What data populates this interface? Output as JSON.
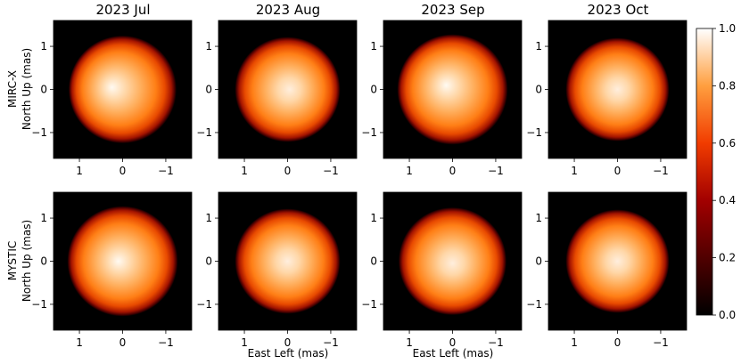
{
  "chart_data": {
    "type": "heatmap",
    "colormap": "gist_heat",
    "colorbar": {
      "range": [
        0.0,
        1.0
      ],
      "ticks": [
        "0.0",
        "0.2",
        "0.4",
        "0.6",
        "0.8",
        "1.0"
      ]
    },
    "columns": [
      "2023 Jul",
      "2023 Aug",
      "2023 Sep",
      "2023 Oct"
    ],
    "rows": [
      {
        "label_line1": "MIRC-X",
        "label_line2": "North Up (mas)"
      },
      {
        "label_line1": "MYSTIC",
        "label_line2": "North Up (mas)"
      }
    ],
    "xlabel": "East Left (mas)",
    "x_ticks": [
      "1",
      "0",
      "−1"
    ],
    "y_ticks": [
      "1",
      "0",
      "−1"
    ],
    "xlim": [
      1.6,
      -1.6
    ],
    "ylim": [
      -1.6,
      1.6
    ],
    "stellar_disk": {
      "panels": [
        {
          "row": 0,
          "col": 0,
          "radius_mas": 1.25,
          "peak": 1.0,
          "bright_center_mas": [
            0.25,
            0.05
          ]
        },
        {
          "row": 0,
          "col": 1,
          "radius_mas": 1.22,
          "peak": 0.97,
          "bright_center_mas": [
            -0.05,
            0.0
          ]
        },
        {
          "row": 0,
          "col": 2,
          "radius_mas": 1.28,
          "peak": 1.0,
          "bright_center_mas": [
            0.15,
            0.1
          ]
        },
        {
          "row": 0,
          "col": 3,
          "radius_mas": 1.2,
          "peak": 0.97,
          "bright_center_mas": [
            0.0,
            0.0
          ]
        },
        {
          "row": 1,
          "col": 0,
          "radius_mas": 1.28,
          "peak": 1.0,
          "bright_center_mas": [
            0.1,
            0.0
          ]
        },
        {
          "row": 1,
          "col": 1,
          "radius_mas": 1.22,
          "peak": 0.97,
          "bright_center_mas": [
            0.0,
            0.0
          ]
        },
        {
          "row": 1,
          "col": 2,
          "radius_mas": 1.25,
          "peak": 0.98,
          "bright_center_mas": [
            0.0,
            -0.05
          ]
        },
        {
          "row": 1,
          "col": 3,
          "radius_mas": 1.2,
          "peak": 0.97,
          "bright_center_mas": [
            0.0,
            0.0
          ]
        }
      ]
    }
  }
}
